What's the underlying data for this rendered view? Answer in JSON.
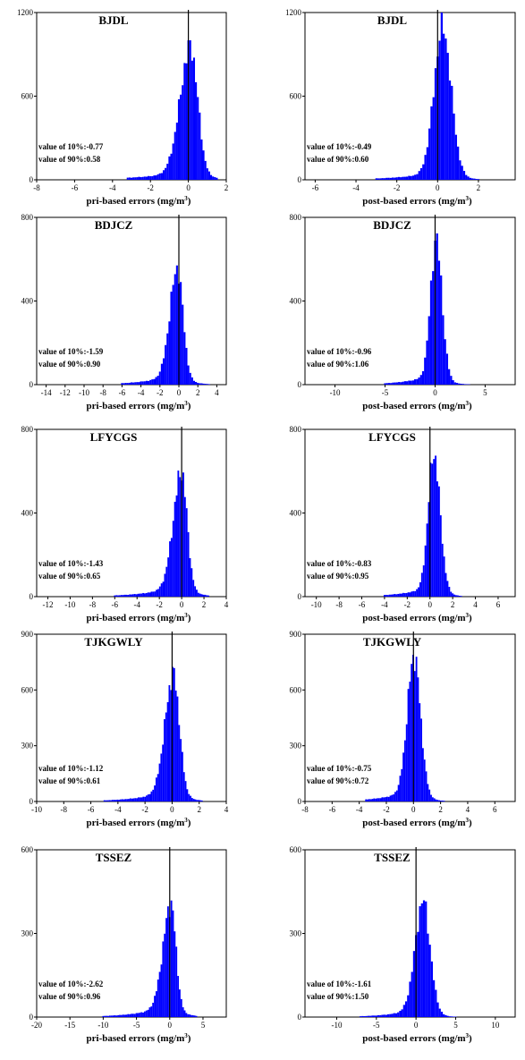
{
  "colors": {
    "bars": "#0000ff",
    "axis": "#000000",
    "zero_line": "#000000"
  },
  "chart_data": [
    {
      "type": "bar",
      "title": "BJDL",
      "xlabel_main": "pri-based errors (mg/m",
      "xlabel_exp": "3",
      "xlabel_close": ")",
      "xlim": [
        -8,
        2
      ],
      "xticks": [
        -8,
        -6,
        -4,
        -2,
        0,
        2
      ],
      "ylim": [
        0,
        1200
      ],
      "yticks": [
        0,
        600,
        1200
      ],
      "ann1": "value of 10%:-0.77",
      "ann2": "value of 90%:0.58",
      "dist": {
        "mode": 0.12,
        "sigL": 0.55,
        "sigR": 0.38,
        "tail": 0.07,
        "tailW": 2.2,
        "peak": 960,
        "start": -3.2,
        "end": 1.5,
        "width": 0.1
      }
    },
    {
      "type": "bar",
      "title": "BJDL",
      "xlabel_main": "post-based errors (mg/m",
      "xlabel_exp": "3",
      "xlabel_close": ")",
      "xlim": [
        -6.5,
        3.8
      ],
      "xticks": [
        -6,
        -4,
        -2,
        0,
        2
      ],
      "ylim": [
        0,
        1200
      ],
      "yticks": [
        0,
        600,
        1200
      ],
      "ann1": "value of 10%:-0.49",
      "ann2": "value of 90%:0.60",
      "dist": {
        "mode": 0.25,
        "sigL": 0.42,
        "sigR": 0.42,
        "tail": 0.06,
        "tailW": 1.7,
        "peak": 1100,
        "start": -3,
        "end": 2,
        "width": 0.1
      }
    },
    {
      "type": "bar",
      "title": "BDJCZ",
      "xlabel_main": "pri-based errors (mg/m",
      "xlabel_exp": "3",
      "xlabel_close": ")",
      "xlim": [
        -15,
        5
      ],
      "xticks": [
        -14,
        -12,
        -10,
        -8,
        -6,
        -4,
        -2,
        0,
        2,
        4
      ],
      "ylim": [
        0,
        800
      ],
      "yticks": [
        0,
        400,
        800
      ],
      "ann1": "value of 10%:-1.59",
      "ann2": "value of 90%:0.90",
      "dist": {
        "mode": -0.15,
        "sigL": 0.8,
        "sigR": 0.6,
        "tail": 0.1,
        "tailW": 2.8,
        "peak": 560,
        "start": -6,
        "end": 3.3,
        "width": 0.2
      }
    },
    {
      "type": "bar",
      "title": "BDJCZ",
      "xlabel_main": "post-based errors (mg/m",
      "xlabel_exp": "3",
      "xlabel_close": ")",
      "xlim": [
        -13,
        8
      ],
      "xticks": [
        -10,
        -5,
        0,
        5
      ],
      "ylim": [
        0,
        800
      ],
      "yticks": [
        0,
        400,
        800
      ],
      "ann1": "value of 10%:-0.96",
      "ann2": "value of 90%:1.06",
      "dist": {
        "mode": 0.1,
        "sigL": 0.55,
        "sigR": 0.6,
        "tail": 0.08,
        "tailW": 2.4,
        "peak": 700,
        "start": -5,
        "end": 3.5,
        "width": 0.2
      }
    },
    {
      "type": "bar",
      "title": "LFYCGS",
      "xlabel_main": "pri-based errors (mg/m",
      "xlabel_exp": "3",
      "xlabel_close": ")",
      "xlim": [
        -13,
        4
      ],
      "xticks": [
        -12,
        -10,
        -8,
        -6,
        -4,
        -2,
        0,
        2,
        4
      ],
      "ylim": [
        0,
        800
      ],
      "yticks": [
        0,
        400,
        800
      ],
      "ann1": "value of 10%:-1.43",
      "ann2": "value of 90%:0.65",
      "dist": {
        "mode": 0.0,
        "sigL": 0.75,
        "sigR": 0.5,
        "tail": 0.1,
        "tailW": 2.6,
        "peak": 600,
        "start": -6,
        "end": 2.5,
        "width": 0.15
      }
    },
    {
      "type": "bar",
      "title": "LFYCGS",
      "xlabel_main": "post-based errors (mg/m",
      "xlabel_exp": "3",
      "xlabel_close": ")",
      "xlim": [
        -11,
        7.5
      ],
      "xticks": [
        -10,
        -8,
        -6,
        -4,
        -2,
        0,
        2,
        4,
        6
      ],
      "ylim": [
        0,
        800
      ],
      "yticks": [
        0,
        400,
        800
      ],
      "ann1": "value of 10%:-0.83",
      "ann2": "value of 90%:0.95",
      "dist": {
        "mode": 0.35,
        "sigL": 0.5,
        "sigR": 0.55,
        "tail": 0.08,
        "tailW": 2.2,
        "peak": 690,
        "start": -4,
        "end": 2.8,
        "width": 0.15
      }
    },
    {
      "type": "bar",
      "title": "TJKGWLY",
      "xlabel_main": "pri-based errors (mg/m",
      "xlabel_exp": "3",
      "xlabel_close": ")",
      "xlim": [
        -10,
        4
      ],
      "xticks": [
        -10,
        -8,
        -6,
        -4,
        -2,
        0,
        2,
        4
      ],
      "ylim": [
        0,
        900
      ],
      "yticks": [
        0,
        300,
        600,
        900
      ],
      "ann1": "value of 10%:-1.12",
      "ann2": "value of 90%:0.61",
      "dist": {
        "mode": 0.1,
        "sigL": 0.62,
        "sigR": 0.45,
        "tail": 0.1,
        "tailW": 2.1,
        "peak": 690,
        "start": -5,
        "end": 2.2,
        "width": 0.12
      }
    },
    {
      "type": "bar",
      "title": "TJKGWLY",
      "xlabel_main": "post-based errors (mg/m",
      "xlabel_exp": "3",
      "xlabel_close": ")",
      "xlim": [
        -8,
        7.5
      ],
      "xticks": [
        -8,
        -6,
        -4,
        -2,
        0,
        2,
        4,
        6
      ],
      "ylim": [
        0,
        900
      ],
      "yticks": [
        0,
        300,
        600,
        900
      ],
      "ann1": "value of 10%:-0.75",
      "ann2": "value of 90%:0.72",
      "dist": {
        "mode": 0.05,
        "sigL": 0.5,
        "sigR": 0.48,
        "tail": 0.09,
        "tailW": 1.9,
        "peak": 790,
        "start": -3.5,
        "end": 2.3,
        "width": 0.12
      }
    },
    {
      "type": "bar",
      "title": "TSSEZ",
      "xlabel_main": "pri-based errors (mg/m",
      "xlabel_exp": "3",
      "xlabel_close": ")",
      "xlim": [
        -20,
        8.5
      ],
      "xticks": [
        -20,
        -15,
        -10,
        -5,
        0,
        5
      ],
      "ylim": [
        0,
        600
      ],
      "yticks": [
        0,
        300,
        600
      ],
      "ann1": "value of 10%:-2.62",
      "ann2": "value of 90%:0.96",
      "dist": {
        "mode": 0.2,
        "sigL": 1.2,
        "sigR": 0.75,
        "tail": 0.12,
        "tailW": 4.0,
        "peak": 410,
        "start": -10,
        "end": 4,
        "width": 0.25
      }
    },
    {
      "type": "bar",
      "title": "TSSEZ",
      "xlabel_main": "post-based errors (mg/m",
      "xlabel_exp": "3",
      "xlabel_close": ")",
      "xlim": [
        -14,
        12.5
      ],
      "xticks": [
        -10,
        -5,
        0,
        5,
        10
      ],
      "ylim": [
        0,
        600
      ],
      "yticks": [
        0,
        300,
        600
      ],
      "ann1": "value of 10%:-1.61",
      "ann2": "value of 90%:1.50",
      "dist": {
        "mode": 0.9,
        "sigL": 1.0,
        "sigR": 0.9,
        "tail": 0.1,
        "tailW": 3.0,
        "peak": 420,
        "start": -7,
        "end": 5,
        "width": 0.25
      }
    }
  ]
}
